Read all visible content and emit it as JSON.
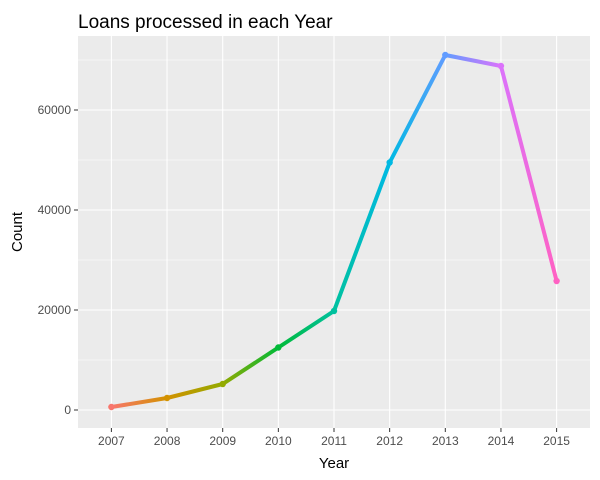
{
  "chart_data": {
    "type": "line",
    "title": "Loans processed in each Year",
    "xlabel": "Year",
    "ylabel": "Count",
    "x": [
      "2007",
      "2008",
      "2009",
      "2010",
      "2011",
      "2012",
      "2013",
      "2014",
      "2015"
    ],
    "values": [
      600,
      2400,
      5200,
      12500,
      19800,
      49500,
      71000,
      68800,
      25800
    ],
    "yticks": [
      0,
      20000,
      40000,
      60000
    ],
    "ytick_labels": [
      "0",
      "20000",
      "40000",
      "60000"
    ],
    "ylim": [
      -3600,
      74800
    ],
    "grid": true,
    "background": "#ebebeb",
    "segment_colors": [
      "#f8766d",
      "#d39200",
      "#93aa00",
      "#00ba38",
      "#00c19f",
      "#00b9e3",
      "#619cff",
      "#db72fb",
      "#ff61c3"
    ]
  }
}
